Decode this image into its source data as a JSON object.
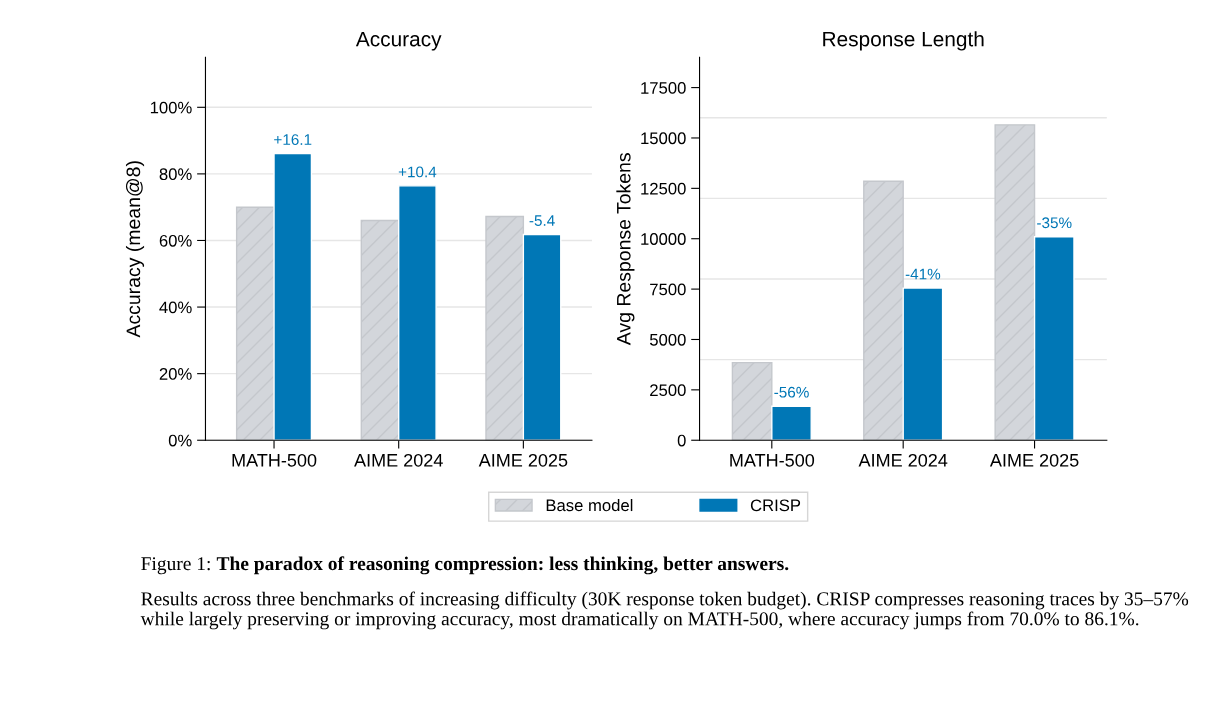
{
  "chart_data": [
    {
      "type": "bar",
      "title": "Accuracy",
      "ylabel": "Accuracy (mean@8)",
      "categories": [
        "MATH-500",
        "AIME 2024",
        "AIME 2025"
      ],
      "series": [
        {
          "name": "Base model",
          "color": "#d3d6db",
          "values": [
            70.0,
            66.0,
            67.2
          ]
        },
        {
          "name": "CRISP",
          "color": "#0077b6",
          "values": [
            86.1,
            76.4,
            61.8
          ]
        }
      ],
      "ylim": [
        0,
        115
      ],
      "yticks": [
        {
          "value": 0,
          "label": "0%"
        },
        {
          "value": 20,
          "label": "20%"
        },
        {
          "value": 40,
          "label": "40%"
        },
        {
          "value": 60,
          "label": "60%"
        },
        {
          "value": 80,
          "label": "80%"
        },
        {
          "value": 100,
          "label": "100%"
        }
      ],
      "grid": "y",
      "legend": "bottom",
      "annotations": [
        {
          "text": "+16.1",
          "x": "MATH-500",
          "y": 86.1
        },
        {
          "text": "+10.4",
          "x": "AIME 2024",
          "y": 76.4
        },
        {
          "text": "-5.4",
          "x": "AIME 2025",
          "y": 61.8
        },
        "Figure 1:",
        "The paradox of reasoning compression: less thinking, better answers.",
        "Results across three benchmarks of increasing difficulty (30K response token budget). CRISP compresses reasoning traces by 35–57% while largely preserving or improving accuracy, most dramatically on MATH-500, where accuracy jumps from 70.0% to 86.1%."
      ]
    },
    {
      "type": "bar",
      "title": "Response Length",
      "ylabel": "Avg Response Tokens",
      "categories": [
        "MATH-500",
        "AIME 2024",
        "AIME 2025"
      ],
      "series": [
        {
          "name": "Base model",
          "color": "#d3d6db",
          "values": [
            3850,
            12850,
            15650
          ]
        },
        {
          "name": "CRISP",
          "color": "#0077b6",
          "values": [
            1690,
            7550,
            10100
          ]
        }
      ],
      "ylim": [
        0,
        19000
      ],
      "yticks": [
        0,
        2500,
        5000,
        7500,
        10000,
        12500,
        15000,
        17500,
        {
          "value": 4000,
          "label": null
        },
        {
          "value": 8000,
          "label": null
        },
        {
          "value": 12000,
          "label": null
        },
        {
          "value": 16000,
          "label": null
        }
      ],
      "grid": "y",
      "legend": "bottom",
      "annotations": [
        {
          "text": "-56%",
          "x": "MATH-500",
          "y": 1690
        },
        {
          "text": "-41%",
          "x": "AIME 2024",
          "y": 7550
        },
        {
          "text": "-35%",
          "x": "AIME 2025",
          "y": 10100
        }
      ]
    }
  ]
}
